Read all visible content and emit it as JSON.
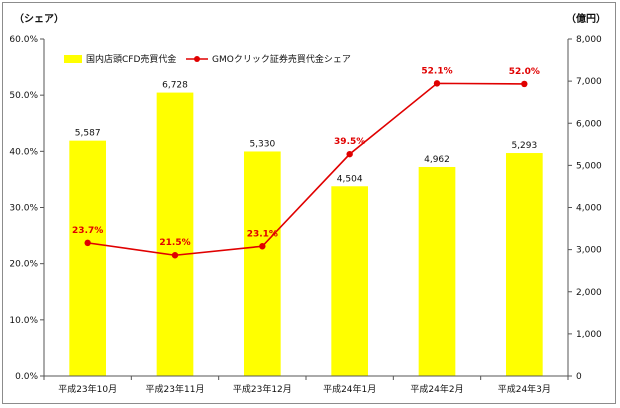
{
  "chart_data": {
    "type": "bar",
    "categories": [
      "平成23年10月",
      "平成23年11月",
      "平成23年12月",
      "平成24年1月",
      "平成24年2月",
      "平成24年3月"
    ],
    "series": [
      {
        "name": "国内店頭CFD売買代金",
        "type": "bar",
        "axis": "right",
        "values": [
          5587,
          6728,
          5330,
          4504,
          4962,
          5293
        ],
        "labels": [
          "5,587",
          "6,728",
          "5,330",
          "4,504",
          "4,962",
          "5,293"
        ],
        "color": "#ffff00"
      },
      {
        "name": "GMOクリック証券売買代金シェア",
        "type": "line",
        "axis": "left",
        "values": [
          23.7,
          21.5,
          23.1,
          39.5,
          52.1,
          52.0
        ],
        "labels": [
          "23.7%",
          "21.5%",
          "23.1%",
          "39.5%",
          "52.1%",
          "52.0%"
        ],
        "color": "#e00000"
      }
    ],
    "y_left": {
      "unit_label": "（シェア）",
      "ticks": [
        "0.0%",
        "10.0%",
        "20.0%",
        "30.0%",
        "40.0%",
        "50.0%",
        "60.0%"
      ],
      "ylim": [
        0,
        60
      ]
    },
    "y_right": {
      "unit_label": "（億円）",
      "ticks": [
        "0",
        "1,000",
        "2,000",
        "3,000",
        "4,000",
        "5,000",
        "6,000",
        "7,000",
        "8,000"
      ],
      "ylim": [
        0,
        8000
      ]
    },
    "grid": false,
    "legend": "top-left"
  }
}
